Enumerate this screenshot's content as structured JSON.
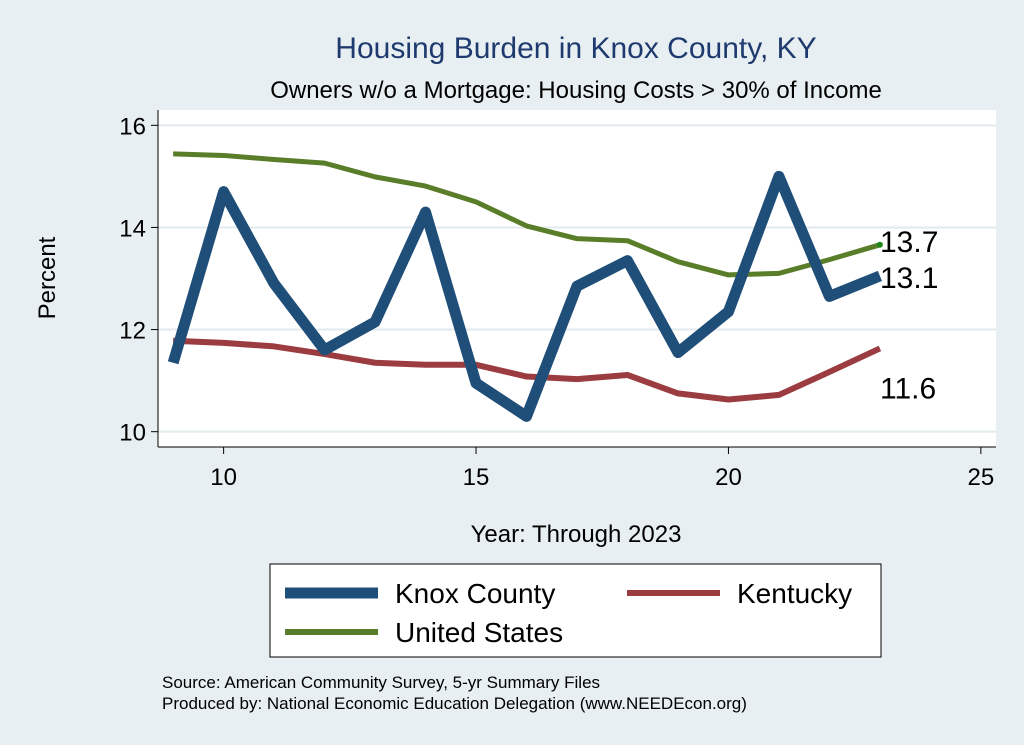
{
  "chart_data": {
    "type": "line",
    "title": "Housing Burden in Knox County, KY",
    "subtitle": "Owners w/o a Mortgage: Housing Costs > 30% of Income",
    "xlabel": "Year: Through 2023",
    "ylabel": "Percent",
    "xlim": [
      8.7,
      25.3
    ],
    "ylim": [
      9.7,
      16.3
    ],
    "x_ticks": [
      10,
      15,
      20,
      25
    ],
    "y_ticks": [
      10,
      12,
      14,
      16
    ],
    "grid": true,
    "x": [
      9,
      10,
      11,
      12,
      13,
      14,
      15,
      16,
      17,
      18,
      19,
      20,
      21,
      22,
      23
    ],
    "series": [
      {
        "key": "knox",
        "name": "Knox County",
        "color": "#1f4e79",
        "values": [
          11.35,
          14.7,
          12.9,
          11.6,
          12.15,
          14.3,
          10.95,
          10.3,
          12.85,
          13.35,
          11.55,
          12.35,
          15.0,
          12.65,
          13.05
        ],
        "end_label": "13.1"
      },
      {
        "key": "kentucky",
        "name": "Kentucky",
        "color": "#9b3c40",
        "values": [
          11.78,
          11.74,
          11.67,
          11.52,
          11.35,
          11.31,
          11.31,
          11.08,
          11.03,
          11.11,
          10.75,
          10.63,
          10.72,
          11.17,
          11.63
        ],
        "end_label": "11.6"
      },
      {
        "key": "us",
        "name": "United States",
        "color": "#5a7d2a",
        "values": [
          15.44,
          15.41,
          15.33,
          15.26,
          14.99,
          14.81,
          14.5,
          14.03,
          13.78,
          13.74,
          13.33,
          13.07,
          13.1,
          13.37,
          13.66
        ],
        "end_label": "13.7"
      }
    ],
    "legend_position": "bottom",
    "notes": [
      "Source: American Community Survey, 5-yr Summary Files",
      "Produced by: National Economic Education Delegation (www.NEEDEcon.org)"
    ]
  }
}
